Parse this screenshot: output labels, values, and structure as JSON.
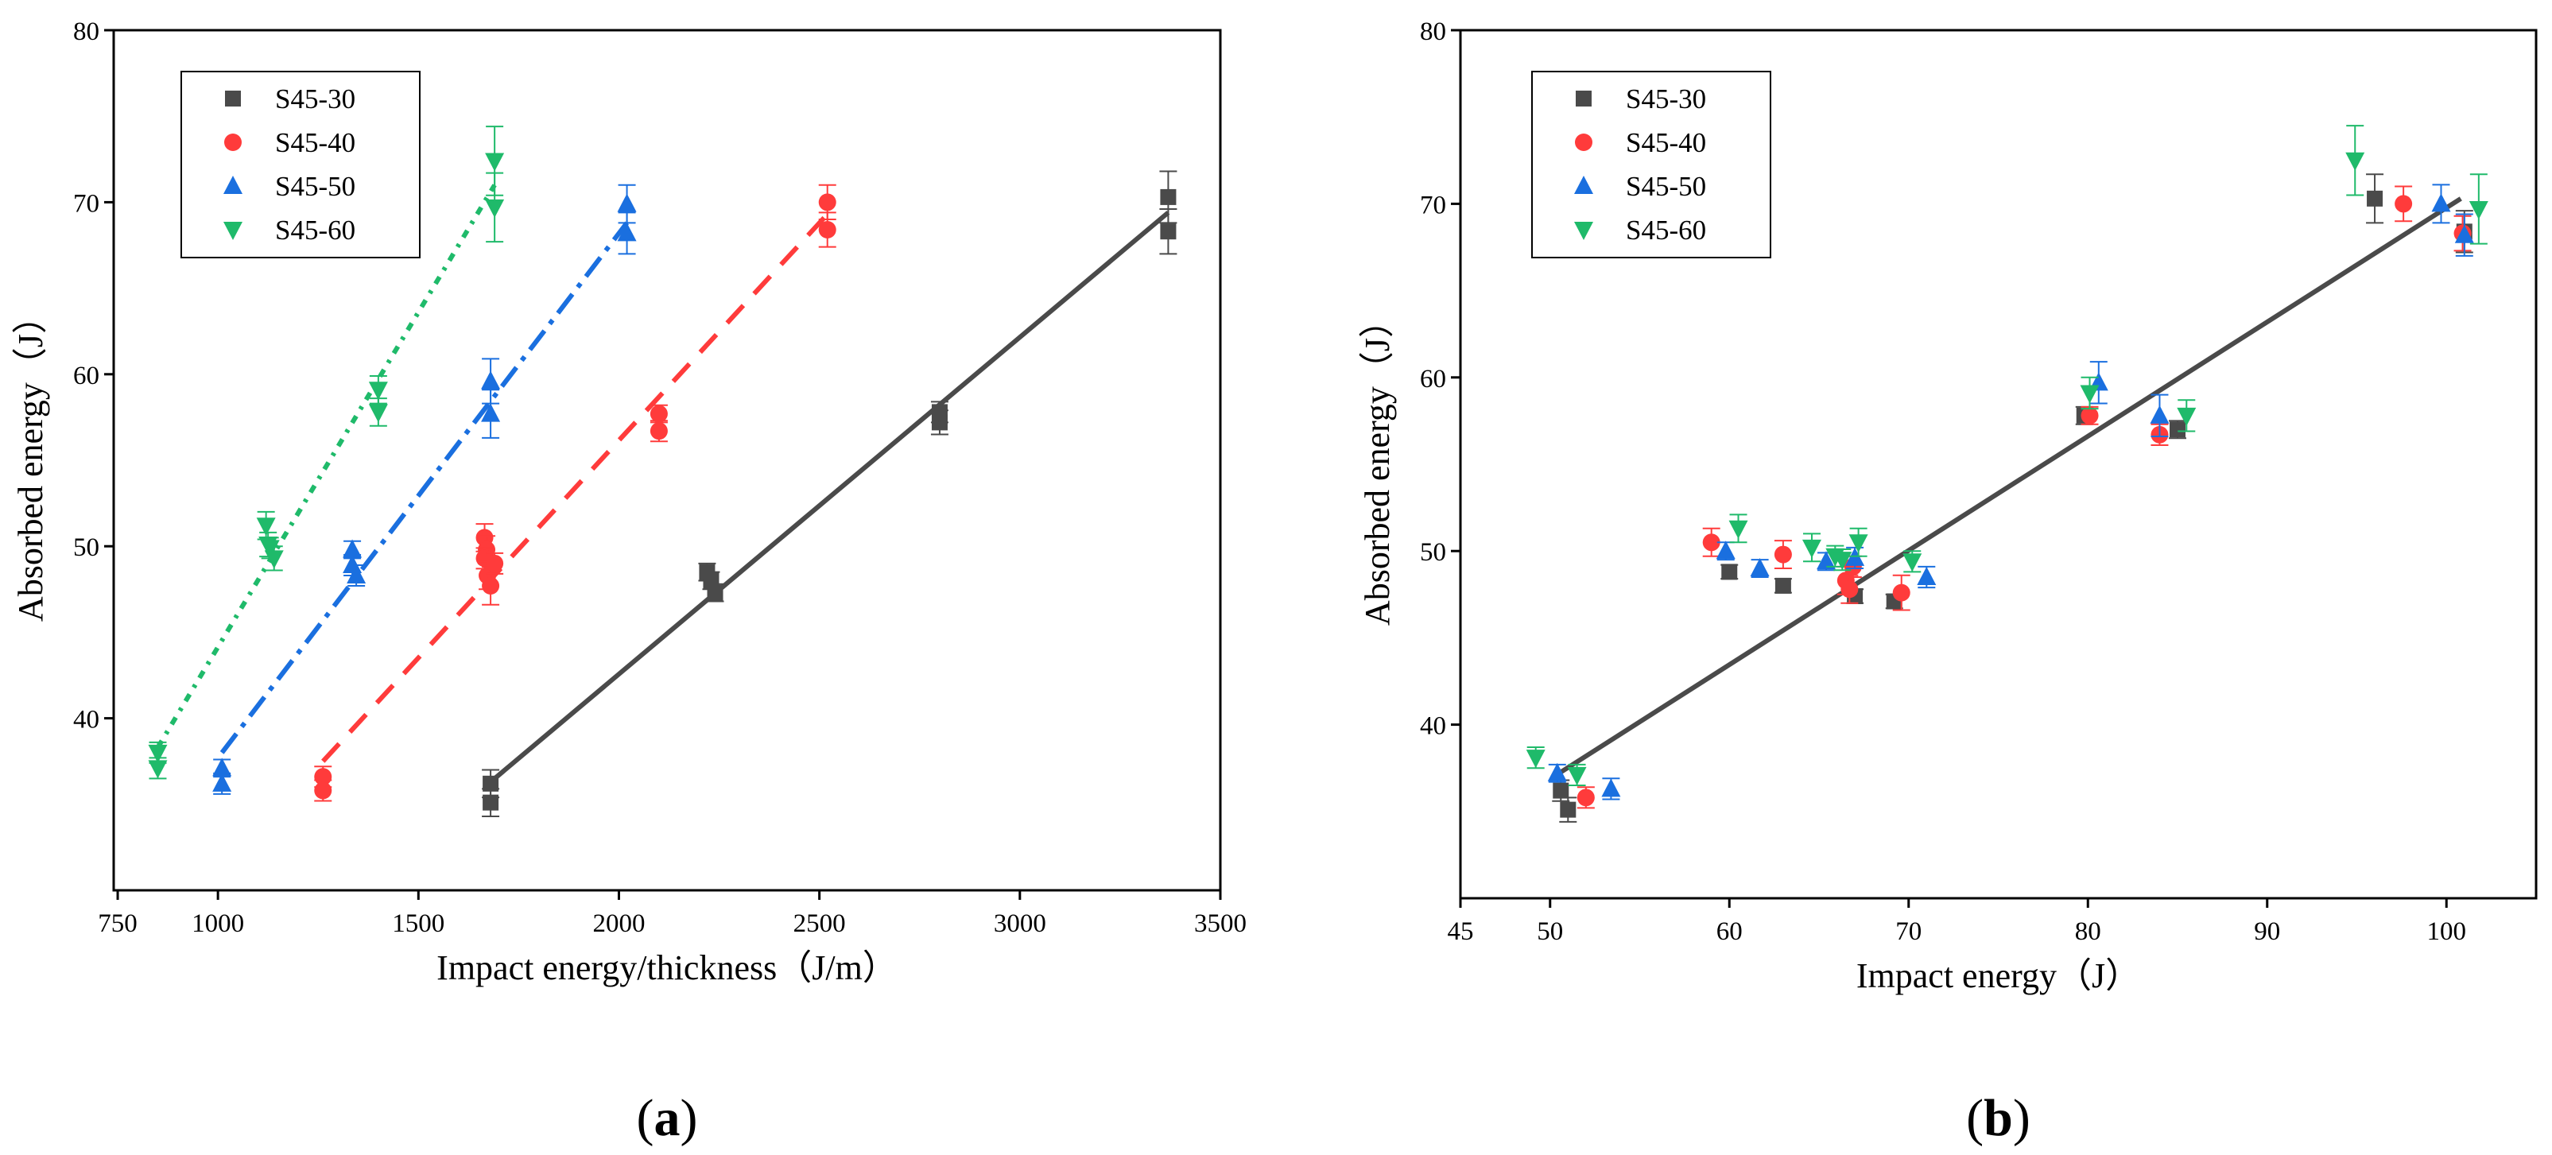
{
  "chart_data": [
    {
      "type": "scatter",
      "panel_label": "a",
      "title": "",
      "xlabel": "Impact energy/thickness（J/m）",
      "ylabel": "Absorbed energy（J）",
      "xlim": [
        740,
        3500
      ],
      "ylim": [
        30,
        80
      ],
      "xticks": [
        750,
        1000,
        1500,
        2000,
        2500,
        3000,
        3500
      ],
      "yticks": [
        40,
        50,
        60,
        70,
        80
      ],
      "legend_position": "top-left",
      "series": [
        {
          "name": "S45-30",
          "color": "#4a4a4a",
          "marker": "square",
          "points": [
            [
              1680,
              35.1
            ],
            [
              1680,
              36.2
            ],
            [
              2220,
              48.5
            ],
            [
              2230,
              48.0
            ],
            [
              2240,
              47.3
            ],
            [
              2800,
              57.2
            ],
            [
              2800,
              57.8
            ],
            [
              3370,
              70.3
            ],
            [
              3370,
              68.3
            ]
          ],
          "errors": [
            0.8,
            0.8,
            0.5,
            0.5,
            0.5,
            0.7,
            0.6,
            1.5,
            1.3
          ],
          "fit": {
            "style": "solid",
            "x": [
              1680,
              3370
            ],
            "y": [
              36.3,
              69.4
            ]
          }
        },
        {
          "name": "S45-40",
          "color": "#ff3b3b",
          "marker": "circle",
          "points": [
            [
              1262,
              36.6
            ],
            [
              1262,
              35.8
            ],
            [
              1665,
              50.5
            ],
            [
              1670,
              49.8
            ],
            [
              1665,
              49.3
            ],
            [
              1672,
              48.3
            ],
            [
              1680,
              47.7
            ],
            [
              1690,
              49.0
            ],
            [
              2100,
              57.7
            ],
            [
              2100,
              56.7
            ],
            [
              2520,
              70.0
            ],
            [
              2520,
              68.4
            ]
          ],
          "errors": [
            0.6,
            0.6,
            0.8,
            0.8,
            0.6,
            0.8,
            1.1,
            0.6,
            0.5,
            0.6,
            1.0,
            1.0
          ],
          "fit": {
            "style": "dashed",
            "x": [
              1262,
              2520
            ],
            "y": [
              37.5,
              69.3
            ]
          }
        },
        {
          "name": "S45-50",
          "color": "#1a6fdf",
          "marker": "triangle-up",
          "points": [
            [
              1010,
              37.1
            ],
            [
              1010,
              36.2
            ],
            [
              1335,
              49.8
            ],
            [
              1335,
              48.9
            ],
            [
              1345,
              48.3
            ],
            [
              1680,
              59.6
            ],
            [
              1680,
              57.7
            ],
            [
              2020,
              69.9
            ],
            [
              2020,
              68.2
            ]
          ],
          "errors": [
            0.5,
            0.6,
            0.5,
            0.6,
            0.6,
            1.3,
            1.4,
            1.1,
            1.2
          ],
          "fit": {
            "style": "dashdot",
            "x": [
              1010,
              2020
            ],
            "y": [
              38.0,
              68.8
            ]
          }
        },
        {
          "name": "S45-60",
          "color": "#1fba6a",
          "marker": "triangle-down",
          "points": [
            [
              850,
              38.0
            ],
            [
              850,
              37.1
            ],
            [
              1120,
              51.2
            ],
            [
              1125,
              50.1
            ],
            [
              1130,
              49.9
            ],
            [
              1140,
              49.3
            ],
            [
              1400,
              59.1
            ],
            [
              1400,
              57.8
            ],
            [
              1690,
              72.4
            ],
            [
              1690,
              69.7
            ]
          ],
          "errors": [
            0.6,
            0.6,
            0.8,
            0.7,
            0.6,
            0.7,
            0.8,
            0.8,
            2.0,
            2.0
          ],
          "fit": {
            "style": "dotdash",
            "x": [
              850,
              1690
            ],
            "y": [
              38.3,
              71.0
            ]
          }
        }
      ]
    },
    {
      "type": "scatter",
      "panel_label": "b",
      "title": "",
      "xlabel": "Impact energy（J）",
      "ylabel": "Absorbed energy（J）",
      "xlim": [
        45,
        105
      ],
      "ylim": [
        30,
        80
      ],
      "xticks": [
        45,
        50,
        60,
        70,
        80,
        90,
        100
      ],
      "yticks": [
        40,
        50,
        60,
        70,
        80
      ],
      "legend_position": "top-left",
      "fit_line": {
        "style": "solid",
        "color": "#4a4a4a",
        "x": [
          50.5,
          100.8
        ],
        "y": [
          37.2,
          70.3
        ]
      },
      "series": [
        {
          "name": "S45-30",
          "color": "#4a4a4a",
          "marker": "square",
          "points": [
            [
              50.6,
              36.2
            ],
            [
              51.0,
              35.1
            ],
            [
              60.0,
              48.8
            ],
            [
              63.0,
              48.0
            ],
            [
              67.0,
              47.4
            ],
            [
              69.2,
              47.1
            ],
            [
              79.8,
              57.8
            ],
            [
              85.0,
              57.0
            ],
            [
              96.0,
              70.3
            ],
            [
              101.0,
              68.4
            ]
          ],
          "errors": [
            0.6,
            0.7,
            0.4,
            0.4,
            0.4,
            0.4,
            0.5,
            0.5,
            1.4,
            1.2
          ]
        },
        {
          "name": "S45-40",
          "color": "#ff3b3b",
          "marker": "circle",
          "points": [
            [
              52.0,
              35.8
            ],
            [
              59.0,
              50.5
            ],
            [
              63.0,
              49.8
            ],
            [
              66.5,
              48.3
            ],
            [
              66.7,
              47.8
            ],
            [
              66.9,
              49.1
            ],
            [
              69.6,
              47.6
            ],
            [
              80.1,
              57.8
            ],
            [
              84.0,
              56.7
            ],
            [
              97.6,
              70.0
            ],
            [
              100.9,
              68.3
            ]
          ],
          "errors": [
            0.6,
            0.8,
            0.8,
            0.8,
            0.8,
            0.6,
            1.0,
            0.5,
            0.6,
            1.0,
            1.0
          ]
        },
        {
          "name": "S45-50",
          "color": "#1a6fdf",
          "marker": "triangle-up",
          "points": [
            [
              50.4,
              37.2
            ],
            [
              53.4,
              36.3
            ],
            [
              59.8,
              50.0
            ],
            [
              61.7,
              49.0
            ],
            [
              65.4,
              49.4
            ],
            [
              67.0,
              49.6
            ],
            [
              71.0,
              48.5
            ],
            [
              80.6,
              59.7
            ],
            [
              84.0,
              57.8
            ],
            [
              99.7,
              70.0
            ],
            [
              101.0,
              68.2
            ]
          ],
          "errors": [
            0.5,
            0.6,
            0.5,
            0.5,
            0.5,
            0.6,
            0.6,
            1.2,
            1.2,
            1.1,
            1.2
          ]
        },
        {
          "name": "S45-60",
          "color": "#1fba6a",
          "marker": "triangle-down",
          "points": [
            [
              49.2,
              38.1
            ],
            [
              51.5,
              37.1
            ],
            [
              60.5,
              51.3
            ],
            [
              64.6,
              50.2
            ],
            [
              65.9,
              49.7
            ],
            [
              66.3,
              49.5
            ],
            [
              67.2,
              50.5
            ],
            [
              70.2,
              49.4
            ],
            [
              80.1,
              59.1
            ],
            [
              85.5,
              57.8
            ],
            [
              94.9,
              72.5
            ],
            [
              101.8,
              69.7
            ]
          ],
          "errors": [
            0.6,
            0.6,
            0.8,
            0.8,
            0.6,
            0.6,
            0.8,
            0.6,
            0.9,
            0.9,
            2.0,
            2.0
          ]
        }
      ]
    }
  ]
}
